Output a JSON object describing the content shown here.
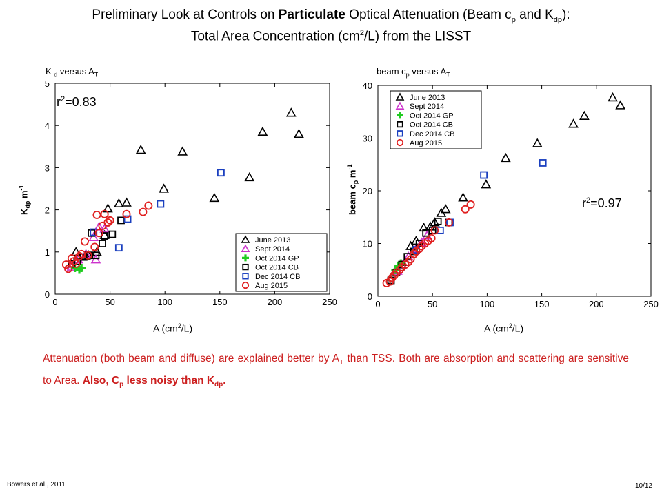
{
  "title": {
    "line1_pre": "Preliminary Look at Controls on ",
    "line1_bold": "Particulate",
    "line1_mid": " Optical Attenuation (Beam c",
    "line1_sub1": "p",
    "line1_mid2": " and K",
    "line1_sub2": "dp",
    "line1_post": "):",
    "line2_pre": "Total Area Concentration (cm",
    "line2_sup": "2",
    "line2_post": "/L) from the LISST"
  },
  "left_subhead": {
    "pre": "K ",
    "sub": "d",
    "mid": " versus A",
    "sub2": "T"
  },
  "right_subhead": {
    "pre": "beam c",
    "sub": "p",
    "mid": "  versus A",
    "sub2": "T"
  },
  "caption": {
    "p1": "Attenuation (both beam and diffuse) are explained better by A",
    "p1_sub": "T",
    "p2": " than TSS. Both are absorption and scattering are sensitive to Area. ",
    "bold1": "Also, C",
    "bold_sub1": "p",
    "bold2": " less noisy than K",
    "bold_sub2": "dp",
    "bold3": "."
  },
  "footer": {
    "left": "Bowers et al., 2011",
    "right": "10/12"
  },
  "series_styles": [
    {
      "name": "June 2013",
      "marker": "triangle",
      "color": "#000000"
    },
    {
      "name": "Sept 2014",
      "marker": "triangle",
      "color": "#cc33cc"
    },
    {
      "name": "Oct 2014 GP",
      "marker": "plus",
      "color": "#22cc22"
    },
    {
      "name": "Oct 2014 CB",
      "marker": "square",
      "color": "#000000"
    },
    {
      "name": "Dec 2014 CB",
      "marker": "square",
      "color": "#1a3fbf"
    },
    {
      "name": "Aug 2015",
      "marker": "circle",
      "color": "#e02020"
    }
  ],
  "chart_data": [
    {
      "type": "scatter",
      "title": "",
      "xlabel_pre": "A (cm",
      "xlabel_sup": "2",
      "xlabel_post": "/L)",
      "ylabel_pre": "K",
      "ylabel_sub": "dp",
      "ylabel_post": " m",
      "ylabel_sup": "-1",
      "annotation_pre": "r",
      "annotation_sup": "2",
      "annotation_post": "=0.83",
      "xlim": [
        0,
        250
      ],
      "ylim": [
        0,
        5
      ],
      "xticks": [
        "0",
        "50",
        "100",
        "150",
        "200",
        "250"
      ],
      "yticks": [
        "0",
        "1",
        "2",
        "3",
        "4",
        "5"
      ],
      "legend_position": "bottom-right",
      "series": [
        {
          "name": "June 2013",
          "points": [
            [
              19,
              1.0
            ],
            [
              28,
              0.9
            ],
            [
              48,
              2.03
            ],
            [
              58,
              2.15
            ],
            [
              65,
              2.17
            ],
            [
              78,
              3.42
            ],
            [
              99,
              2.5
            ],
            [
              116,
              3.38
            ],
            [
              145,
              2.28
            ],
            [
              177,
              2.77
            ],
            [
              189,
              3.85
            ],
            [
              215,
              4.3
            ],
            [
              222,
              3.8
            ],
            [
              45,
              1.4
            ],
            [
              38,
              1.0
            ],
            [
              30,
              0.93
            ]
          ]
        },
        {
          "name": "Sept 2014",
          "points": [
            [
              15,
              0.65
            ],
            [
              21,
              0.82
            ],
            [
              28,
              0.95
            ],
            [
              35,
              1.35
            ],
            [
              37,
              0.82
            ],
            [
              40,
              1.6
            ],
            [
              45,
              1.55
            ]
          ]
        },
        {
          "name": "Oct 2014 GP",
          "points": [
            [
              18,
              0.62
            ],
            [
              22,
              0.58
            ],
            [
              24,
              0.62
            ]
          ]
        },
        {
          "name": "Oct 2014 CB",
          "points": [
            [
              15,
              0.72
            ],
            [
              20,
              0.78
            ],
            [
              26,
              0.88
            ],
            [
              30,
              0.92
            ],
            [
              33,
              1.45
            ],
            [
              37,
              0.92
            ],
            [
              43,
              1.2
            ],
            [
              45,
              1.38
            ],
            [
              52,
              1.42
            ],
            [
              60,
              1.75
            ]
          ]
        },
        {
          "name": "Dec 2014 CB",
          "points": [
            [
              35,
              1.47
            ],
            [
              58,
              1.1
            ],
            [
              66,
              1.78
            ],
            [
              96,
              2.14
            ],
            [
              151,
              2.88
            ]
          ]
        },
        {
          "name": "Aug 2015",
          "points": [
            [
              10,
              0.7
            ],
            [
              12,
              0.6
            ],
            [
              15,
              0.85
            ],
            [
              17,
              0.78
            ],
            [
              19,
              0.72
            ],
            [
              22,
              0.9
            ],
            [
              24,
              0.95
            ],
            [
              27,
              1.25
            ],
            [
              30,
              0.92
            ],
            [
              36,
              1.12
            ],
            [
              38,
              1.88
            ],
            [
              40,
              1.45
            ],
            [
              43,
              1.62
            ],
            [
              45,
              1.9
            ],
            [
              48,
              1.7
            ],
            [
              50,
              1.75
            ],
            [
              65,
              1.9
            ],
            [
              80,
              1.95
            ],
            [
              85,
              2.1
            ]
          ]
        }
      ]
    },
    {
      "type": "scatter",
      "title": "",
      "xlabel_pre": "A (cm",
      "xlabel_sup": "2",
      "xlabel_post": "/L)",
      "ylabel_pre": "beam c",
      "ylabel_sub": "p",
      "ylabel_post": " m",
      "ylabel_sup": "-1",
      "annotation_pre": "r",
      "annotation_sup": "2",
      "annotation_post": "=0.97",
      "xlim": [
        0,
        250
      ],
      "ylim": [
        0,
        40
      ],
      "xticks": [
        "0",
        "50",
        "100",
        "150",
        "200",
        "250"
      ],
      "yticks": [
        "0",
        "10",
        "20",
        "30",
        "40"
      ],
      "legend_position": "top-left",
      "series": [
        {
          "name": "June 2013",
          "points": [
            [
              15,
              4.5
            ],
            [
              20,
              5.5
            ],
            [
              25,
              6.5
            ],
            [
              30,
              9.5
            ],
            [
              35,
              10.5
            ],
            [
              42,
              13
            ],
            [
              48,
              13.2
            ],
            [
              52,
              14
            ],
            [
              58,
              15.8
            ],
            [
              62,
              16.5
            ],
            [
              78,
              18.7
            ],
            [
              99,
              21.2
            ],
            [
              117,
              26.2
            ],
            [
              146,
              29
            ],
            [
              179,
              32.7
            ],
            [
              189,
              34.2
            ],
            [
              215,
              37.7
            ],
            [
              222,
              36.2
            ]
          ]
        },
        {
          "name": "Sept 2014",
          "points": [
            [
              18,
              4.8
            ],
            [
              22,
              6
            ],
            [
              28,
              7.5
            ],
            [
              35,
              9
            ],
            [
              40,
              10.2
            ],
            [
              45,
              11.5
            ]
          ]
        },
        {
          "name": "Oct 2014 GP",
          "points": [
            [
              16,
              5
            ],
            [
              19,
              5.8
            ],
            [
              21,
              6.2
            ]
          ]
        },
        {
          "name": "Oct 2014 CB",
          "points": [
            [
              12,
              3
            ],
            [
              17,
              4.5
            ],
            [
              22,
              6
            ],
            [
              27,
              7.5
            ],
            [
              33,
              8.5
            ],
            [
              38,
              10
            ],
            [
              44,
              12
            ],
            [
              50,
              12.5
            ],
            [
              55,
              14.2
            ],
            [
              65,
              14
            ]
          ]
        },
        {
          "name": "Dec 2014 CB",
          "points": [
            [
              35,
              8.8
            ],
            [
              57,
              12.5
            ],
            [
              66,
              14
            ],
            [
              97,
              23
            ],
            [
              151,
              25.3
            ]
          ]
        },
        {
          "name": "Aug 2015",
          "points": [
            [
              8,
              2.5
            ],
            [
              11,
              2.8
            ],
            [
              13,
              3.5
            ],
            [
              15,
              4
            ],
            [
              17,
              4.5
            ],
            [
              20,
              5
            ],
            [
              22,
              5.5
            ],
            [
              25,
              6
            ],
            [
              28,
              6.5
            ],
            [
              30,
              7
            ],
            [
              33,
              8
            ],
            [
              35,
              8.5
            ],
            [
              38,
              9
            ],
            [
              40,
              9.5
            ],
            [
              43,
              10
            ],
            [
              46,
              10.5
            ],
            [
              49,
              11
            ],
            [
              52,
              12.5
            ],
            [
              65,
              14
            ],
            [
              80,
              16.5
            ],
            [
              85,
              17.4
            ]
          ]
        }
      ]
    }
  ]
}
